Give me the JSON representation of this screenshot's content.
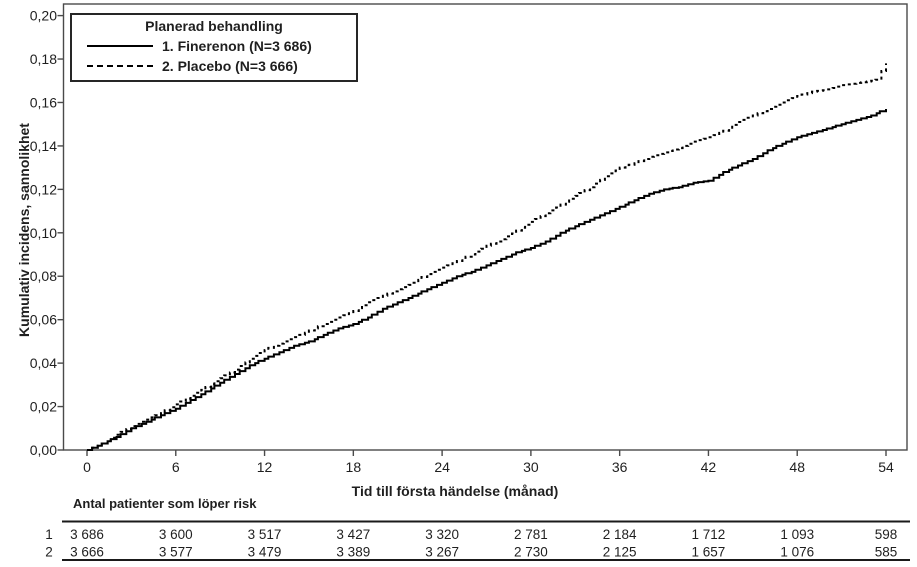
{
  "chart_data": {
    "type": "line",
    "title": "",
    "ylabel": "Kumulativ incidens, sannolikhet",
    "xlabel": "Tid till första händelse (månad)",
    "xlim": [
      0,
      54
    ],
    "ylim": [
      0.0,
      0.2
    ],
    "grid": false,
    "x_ticks": [
      0,
      6,
      12,
      18,
      24,
      30,
      36,
      42,
      48,
      54
    ],
    "x_tick_labels": [
      "0",
      "6",
      "12",
      "18",
      "24",
      "30",
      "36",
      "42",
      "48",
      "54"
    ],
    "y_ticks": [
      0.0,
      0.02,
      0.04,
      0.06,
      0.08,
      0.1,
      0.12,
      0.14,
      0.16,
      0.18,
      0.2
    ],
    "y_tick_labels": [
      "0,00",
      "0,02",
      "0,04",
      "0,06",
      "0,08",
      "0,10",
      "0,12",
      "0,14",
      "0,16",
      "0,18",
      "0,20"
    ],
    "legend": {
      "title": "Planerad behandling",
      "position": "top-left",
      "entries": [
        {
          "label": "1. Finerenon (N=3 686)",
          "style": "solid",
          "color": "#000000"
        },
        {
          "label": "2. Placebo (N=3 666)",
          "style": "dashed",
          "color": "#000000"
        }
      ]
    },
    "series": [
      {
        "name": "1. Finerenon (N=3 686)",
        "line": "solid",
        "color": "#000000",
        "points": [
          [
            0,
            0.0
          ],
          [
            1,
            0.003
          ],
          [
            2,
            0.006
          ],
          [
            3,
            0.01
          ],
          [
            4,
            0.013
          ],
          [
            5,
            0.016
          ],
          [
            6,
            0.019
          ],
          [
            7,
            0.023
          ],
          [
            8,
            0.027
          ],
          [
            9,
            0.031
          ],
          [
            10,
            0.035
          ],
          [
            11,
            0.039
          ],
          [
            12,
            0.042
          ],
          [
            13,
            0.045
          ],
          [
            14,
            0.048
          ],
          [
            15,
            0.05
          ],
          [
            16,
            0.053
          ],
          [
            17,
            0.056
          ],
          [
            18,
            0.058
          ],
          [
            19,
            0.061
          ],
          [
            20,
            0.065
          ],
          [
            21,
            0.068
          ],
          [
            22,
            0.071
          ],
          [
            23,
            0.074
          ],
          [
            24,
            0.077
          ],
          [
            25,
            0.08
          ],
          [
            26,
            0.082
          ],
          [
            27,
            0.085
          ],
          [
            28,
            0.088
          ],
          [
            29,
            0.091
          ],
          [
            30,
            0.093
          ],
          [
            31,
            0.096
          ],
          [
            32,
            0.1
          ],
          [
            33,
            0.103
          ],
          [
            34,
            0.106
          ],
          [
            35,
            0.109
          ],
          [
            36,
            0.112
          ],
          [
            37,
            0.115
          ],
          [
            38,
            0.118
          ],
          [
            39,
            0.12
          ],
          [
            40,
            0.121
          ],
          [
            41,
            0.123
          ],
          [
            42,
            0.124
          ],
          [
            43,
            0.128
          ],
          [
            44,
            0.131
          ],
          [
            45,
            0.134
          ],
          [
            46,
            0.138
          ],
          [
            47,
            0.141
          ],
          [
            48,
            0.144
          ],
          [
            49,
            0.146
          ],
          [
            50,
            0.148
          ],
          [
            51,
            0.15
          ],
          [
            52,
            0.152
          ],
          [
            53,
            0.154
          ],
          [
            54,
            0.157
          ]
        ]
      },
      {
        "name": "2. Placebo (N=3 666)",
        "line": "dashed",
        "color": "#000000",
        "points": [
          [
            0,
            0.0
          ],
          [
            1,
            0.003
          ],
          [
            2,
            0.007
          ],
          [
            3,
            0.011
          ],
          [
            4,
            0.014
          ],
          [
            5,
            0.017
          ],
          [
            6,
            0.021
          ],
          [
            7,
            0.025
          ],
          [
            8,
            0.029
          ],
          [
            9,
            0.033
          ],
          [
            10,
            0.037
          ],
          [
            11,
            0.042
          ],
          [
            12,
            0.046
          ],
          [
            13,
            0.049
          ],
          [
            14,
            0.052
          ],
          [
            15,
            0.055
          ],
          [
            16,
            0.058
          ],
          [
            17,
            0.061
          ],
          [
            18,
            0.064
          ],
          [
            19,
            0.068
          ],
          [
            20,
            0.071
          ],
          [
            21,
            0.074
          ],
          [
            22,
            0.077
          ],
          [
            23,
            0.081
          ],
          [
            24,
            0.084
          ],
          [
            25,
            0.087
          ],
          [
            26,
            0.09
          ],
          [
            27,
            0.094
          ],
          [
            28,
            0.097
          ],
          [
            29,
            0.101
          ],
          [
            30,
            0.105
          ],
          [
            31,
            0.109
          ],
          [
            32,
            0.113
          ],
          [
            33,
            0.117
          ],
          [
            34,
            0.121
          ],
          [
            35,
            0.126
          ],
          [
            36,
            0.13
          ],
          [
            37,
            0.132
          ],
          [
            38,
            0.135
          ],
          [
            39,
            0.137
          ],
          [
            40,
            0.139
          ],
          [
            41,
            0.142
          ],
          [
            42,
            0.144
          ],
          [
            43,
            0.147
          ],
          [
            44,
            0.151
          ],
          [
            45,
            0.154
          ],
          [
            46,
            0.157
          ],
          [
            47,
            0.16
          ],
          [
            48,
            0.163
          ],
          [
            49,
            0.165
          ],
          [
            50,
            0.166
          ],
          [
            51,
            0.168
          ],
          [
            52,
            0.169
          ],
          [
            53,
            0.17
          ],
          [
            53.5,
            0.171
          ],
          [
            54,
            0.178
          ]
        ]
      }
    ],
    "risk_table": {
      "title": "Antal patienter som löper risk",
      "x_positions": [
        0,
        6,
        12,
        18,
        24,
        30,
        36,
        42,
        48,
        54
      ],
      "rows": [
        {
          "label": "1",
          "values": [
            "3 686",
            "3 600",
            "3 517",
            "3 427",
            "3 320",
            "2 781",
            "2 184",
            "1 712",
            "1 093",
            "598"
          ]
        },
        {
          "label": "2",
          "values": [
            "3 666",
            "3 577",
            "3 479",
            "3 389",
            "3 267",
            "2 730",
            "2 125",
            "1 657",
            "1 076",
            "585"
          ]
        }
      ]
    },
    "colors": {
      "curves": "#000000",
      "axis": "#4a4a4a",
      "text": "#1f1f1f",
      "table_rule": "#1a1a1a"
    }
  }
}
